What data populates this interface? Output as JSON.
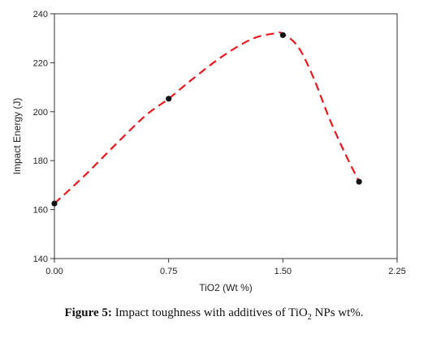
{
  "chart_data": {
    "type": "scatter",
    "x": [
      0.0,
      0.75,
      1.5,
      2.0
    ],
    "y": [
      162.5,
      205.3,
      231.3,
      171.4
    ],
    "xlabel": "TiO2 (Wt %)",
    "ylabel": "Impact Energy (J)",
    "xlim": [
      0,
      2.25
    ],
    "ylim": [
      140,
      240
    ],
    "xticks": [
      "0.00",
      "0.75",
      "1.50",
      "2.25"
    ],
    "yticks": [
      "140",
      "160",
      "180",
      "200",
      "220",
      "240"
    ],
    "fit_line": {
      "style": "dashed",
      "color": "#e8191f",
      "x": [
        0.0,
        0.2,
        0.4,
        0.6,
        0.75,
        0.9,
        1.1,
        1.3,
        1.45,
        1.5,
        1.6,
        1.7,
        1.8,
        1.9,
        2.0
      ],
      "y": [
        162.5,
        174.0,
        186.5,
        198.5,
        205.3,
        213.0,
        222.5,
        229.8,
        232.0,
        231.8,
        226.5,
        214.0,
        198.0,
        184.0,
        171.4
      ]
    },
    "marker_color": "#111111",
    "grid": false
  },
  "caption": {
    "label": "Figure 5:",
    "text_before": "Impact toughness with additives of TiO",
    "subscript": "2",
    "text_after": "NPs wt%."
  }
}
